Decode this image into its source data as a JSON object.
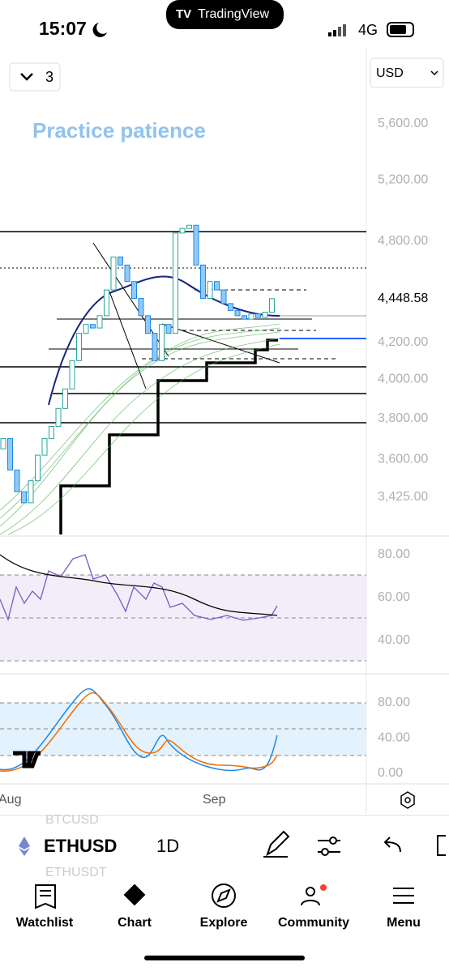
{
  "status_bar": {
    "time": "15:07",
    "app": "TradingView",
    "network": "4G"
  },
  "toolbar": {
    "layouts": "3",
    "currency": "USD"
  },
  "chart": {
    "annotation": "Practice patience",
    "price_ticks": [
      {
        "value": 5600,
        "label": "5,600.00"
      },
      {
        "value": 5200,
        "label": "5,200.00"
      },
      {
        "value": 4800,
        "label": "4,800.00"
      },
      {
        "value": 4200,
        "label": "4,200.00"
      },
      {
        "value": 4000,
        "label": "4,000.00"
      },
      {
        "value": 3800,
        "label": "3,800.00"
      },
      {
        "value": 3600,
        "label": "3,600.00"
      },
      {
        "value": 3425,
        "label": "3,425.00"
      }
    ],
    "last_price": {
      "value": 4448.58,
      "label": "4,448.58"
    },
    "up_color": "#26a69a",
    "down_color": "#1e88e5",
    "candles": {
      "open": [
        3650,
        3700,
        3550,
        3450,
        3400,
        3500,
        3620,
        3700,
        3760,
        3850,
        3950,
        4100,
        4250,
        4300,
        4280,
        4350,
        4500,
        4700,
        4650,
        4550,
        4450,
        4350,
        4250,
        4100,
        4300,
        4250,
        4850,
        4880,
        4900,
        4650,
        4450,
        4550,
        4500,
        4420,
        4380,
        4350,
        4330,
        4360,
        4340,
        4370
      ],
      "close": [
        3700,
        3550,
        3450,
        3400,
        3500,
        3620,
        3700,
        3760,
        3850,
        3950,
        4100,
        4250,
        4300,
        4280,
        4350,
        4500,
        4700,
        4650,
        4550,
        4450,
        4350,
        4250,
        4100,
        4300,
        4250,
        4850,
        4880,
        4900,
        4650,
        4450,
        4550,
        4500,
        4420,
        4380,
        4350,
        4330,
        4360,
        4340,
        4370,
        4448.58
      ]
    }
  },
  "rsi_pane": {
    "ticks": [
      "80.00",
      "60.00",
      "40.00"
    ]
  },
  "stoch_pane": {
    "ticks": [
      "80.00",
      "40.00",
      "0.00"
    ]
  },
  "time_axis": [
    "Aug",
    "Sep"
  ],
  "symbol_bar": {
    "above": "BTCUSD",
    "symbol": "ETHUSD",
    "below": "ETHUSDT",
    "interval": "1D"
  },
  "tabs": [
    "Watchlist",
    "Chart",
    "Explore",
    "Community",
    "Menu"
  ]
}
